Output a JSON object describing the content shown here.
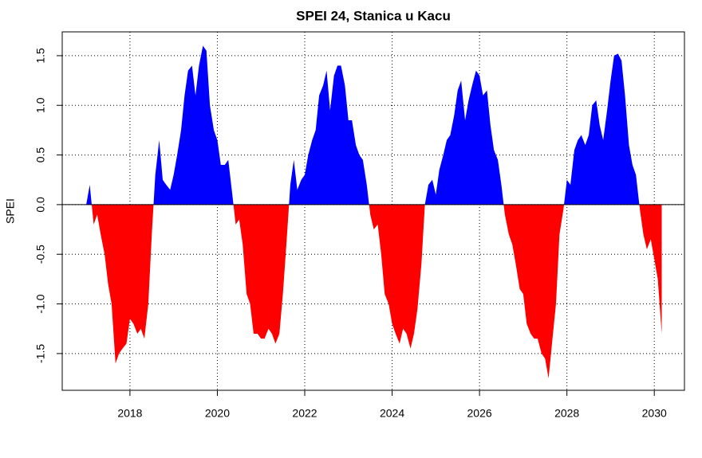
{
  "chart_data": {
    "type": "signed_area",
    "title": "SPEI 24, Stanica u Kacu",
    "y_label": "SPEI",
    "x": [
      2017.0,
      2017.08,
      2017.17,
      2017.25,
      2017.33,
      2017.42,
      2017.5,
      2017.58,
      2017.67,
      2017.75,
      2017.83,
      2017.92,
      2018.0,
      2018.08,
      2018.17,
      2018.25,
      2018.33,
      2018.42,
      2018.5,
      2018.58,
      2018.67,
      2018.75,
      2018.83,
      2018.92,
      2019.0,
      2019.08,
      2019.17,
      2019.25,
      2019.33,
      2019.42,
      2019.5,
      2019.58,
      2019.67,
      2019.75,
      2019.83,
      2019.92,
      2020.0,
      2020.08,
      2020.17,
      2020.25,
      2020.33,
      2020.42,
      2020.5,
      2020.58,
      2020.67,
      2020.75,
      2020.83,
      2020.92,
      2021.0,
      2021.08,
      2021.17,
      2021.25,
      2021.33,
      2021.42,
      2021.5,
      2021.58,
      2021.67,
      2021.75,
      2021.83,
      2021.92,
      2022.0,
      2022.08,
      2022.17,
      2022.25,
      2022.33,
      2022.42,
      2022.5,
      2022.58,
      2022.67,
      2022.75,
      2022.83,
      2022.92,
      2023.0,
      2023.08,
      2023.17,
      2023.25,
      2023.33,
      2023.42,
      2023.5,
      2023.58,
      2023.67,
      2023.75,
      2023.83,
      2023.92,
      2024.0,
      2024.08,
      2024.17,
      2024.25,
      2024.33,
      2024.42,
      2024.5,
      2024.58,
      2024.67,
      2024.75,
      2024.83,
      2024.92,
      2025.0,
      2025.08,
      2025.17,
      2025.25,
      2025.33,
      2025.42,
      2025.5,
      2025.58,
      2025.67,
      2025.75,
      2025.83,
      2025.92,
      2026.0,
      2026.08,
      2026.17,
      2026.25,
      2026.33,
      2026.42,
      2026.5,
      2026.58,
      2026.67,
      2026.75,
      2026.83,
      2026.92,
      2027.0,
      2027.08,
      2027.17,
      2027.25,
      2027.33,
      2027.42,
      2027.5,
      2027.58,
      2027.67,
      2027.75,
      2027.83,
      2027.92,
      2028.0,
      2028.08,
      2028.17,
      2028.25,
      2028.33,
      2028.42,
      2028.5,
      2028.58,
      2028.67,
      2028.75,
      2028.83,
      2028.92,
      2029.0,
      2029.08,
      2029.17,
      2029.25,
      2029.33,
      2029.42,
      2029.5,
      2029.58,
      2029.67,
      2029.75,
      2029.83,
      2029.92,
      2030.0,
      2030.08,
      2030.17
    ],
    "values": [
      0,
      0.2,
      -0.2,
      -0.1,
      -0.3,
      -0.5,
      -0.8,
      -1.0,
      -1.6,
      -1.5,
      -1.45,
      -1.4,
      -1.15,
      -1.2,
      -1.3,
      -1.25,
      -1.35,
      -1.0,
      -0.3,
      0.3,
      0.65,
      0.25,
      0.2,
      0.15,
      0.3,
      0.5,
      0.75,
      1.1,
      1.35,
      1.4,
      1.1,
      1.4,
      1.6,
      1.55,
      1.0,
      0.75,
      0.65,
      0.4,
      0.4,
      0.45,
      0.15,
      -0.2,
      -0.15,
      -0.4,
      -0.9,
      -1.0,
      -1.3,
      -1.3,
      -1.35,
      -1.35,
      -1.25,
      -1.3,
      -1.4,
      -1.3,
      -0.9,
      -0.4,
      0.2,
      0.45,
      0.15,
      0.25,
      0.3,
      0.5,
      0.65,
      0.75,
      1.1,
      1.2,
      1.35,
      0.95,
      1.3,
      1.4,
      1.4,
      1.2,
      0.85,
      0.85,
      0.6,
      0.5,
      0.45,
      0.2,
      -0.1,
      -0.25,
      -0.2,
      -0.5,
      -0.9,
      -1.0,
      -1.2,
      -1.3,
      -1.4,
      -1.25,
      -1.3,
      -1.45,
      -1.3,
      -1.05,
      -0.6,
      0.0,
      0.2,
      0.25,
      0.1,
      0.35,
      0.5,
      0.65,
      0.7,
      0.9,
      1.15,
      1.25,
      0.85,
      1.05,
      1.2,
      1.35,
      1.3,
      1.1,
      1.15,
      0.8,
      0.55,
      0.45,
      0.2,
      -0.1,
      -0.3,
      -0.4,
      -0.6,
      -0.85,
      -0.9,
      -1.2,
      -1.3,
      -1.35,
      -1.35,
      -1.5,
      -1.55,
      -1.75,
      -1.35,
      -1.0,
      -0.3,
      -0.05,
      0.25,
      0.2,
      0.55,
      0.65,
      0.7,
      0.6,
      0.7,
      1.0,
      1.05,
      0.8,
      0.65,
      0.95,
      1.25,
      1.5,
      1.52,
      1.45,
      1.1,
      0.6,
      0.4,
      0.3,
      -0.05,
      -0.3,
      -0.45,
      -0.35,
      -0.55,
      -0.75,
      -1.3
    ],
    "positive_color": "#0000ff",
    "negative_color": "#ff0000",
    "xlim": [
      2016.45,
      2030.69
    ],
    "ylim": [
      -1.87,
      1.74
    ],
    "xticks": [
      2018,
      2020,
      2022,
      2024,
      2026,
      2028,
      2030
    ],
    "yticks": [
      -1.5,
      {
        "value": -1,
        "label": "-1.0"
      },
      -0.5,
      {
        "value": 0,
        "label": "0.0"
      },
      0.5,
      {
        "value": 1,
        "label": "1.0"
      },
      1.5
    ],
    "grid": true
  }
}
